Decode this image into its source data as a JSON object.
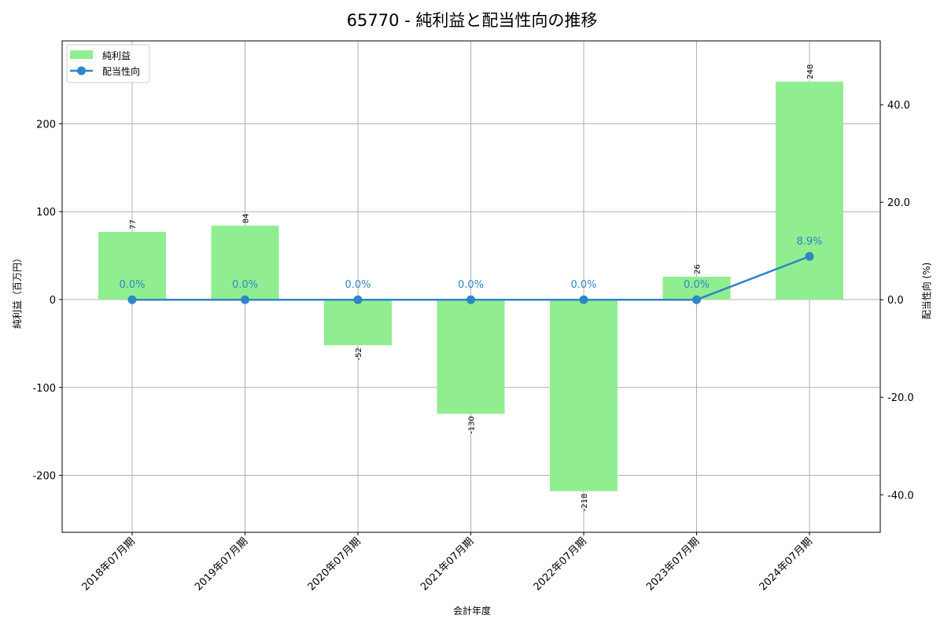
{
  "title": "65770 - 純利益と配当性向の推移",
  "chart_data": {
    "type": "bar",
    "title": "65770 - 純利益と配当性向の推移",
    "xlabel": "会計年度",
    "ylabel": "純利益（百万円）",
    "y2label": "配当性向 (%)",
    "categories": [
      "2018年07月期",
      "2019年07月期",
      "2020年07月期",
      "2021年07月期",
      "2022年07月期",
      "2023年07月期",
      "2024年07月期"
    ],
    "series": [
      {
        "name": "純利益",
        "type": "bar",
        "axis": "left",
        "color": "#90ee90",
        "values": [
          77,
          84,
          -52,
          -130,
          -218,
          26,
          248
        ],
        "labels": [
          "77",
          "84",
          "-52",
          "-130",
          "-218",
          "26",
          "248"
        ]
      },
      {
        "name": "配当性向",
        "type": "line",
        "axis": "right",
        "color": "#2e86c8",
        "values": [
          0.0,
          0.0,
          0.0,
          0.0,
          0.0,
          0.0,
          8.9
        ],
        "labels": [
          "0.0%",
          "0.0%",
          "0.0%",
          "0.0%",
          "0.0%",
          "0.0%",
          "8.9%"
        ]
      }
    ],
    "ylim": [
      -264.8,
      294.3
    ],
    "y2lim": [
      -47.7,
      53.1
    ],
    "yticks": [
      -200,
      -100,
      0,
      100,
      200
    ],
    "ytick_labels": [
      "-200",
      "-100",
      "0",
      "100",
      "200"
    ],
    "y2ticks": [
      -40,
      -20,
      0,
      20,
      40
    ],
    "y2tick_labels": [
      "-40.0",
      "-20.0",
      "0.0",
      "20.0",
      "40.0"
    ],
    "grid": true,
    "legend_position": "upper left",
    "legend": [
      "純利益",
      "配当性向"
    ]
  }
}
